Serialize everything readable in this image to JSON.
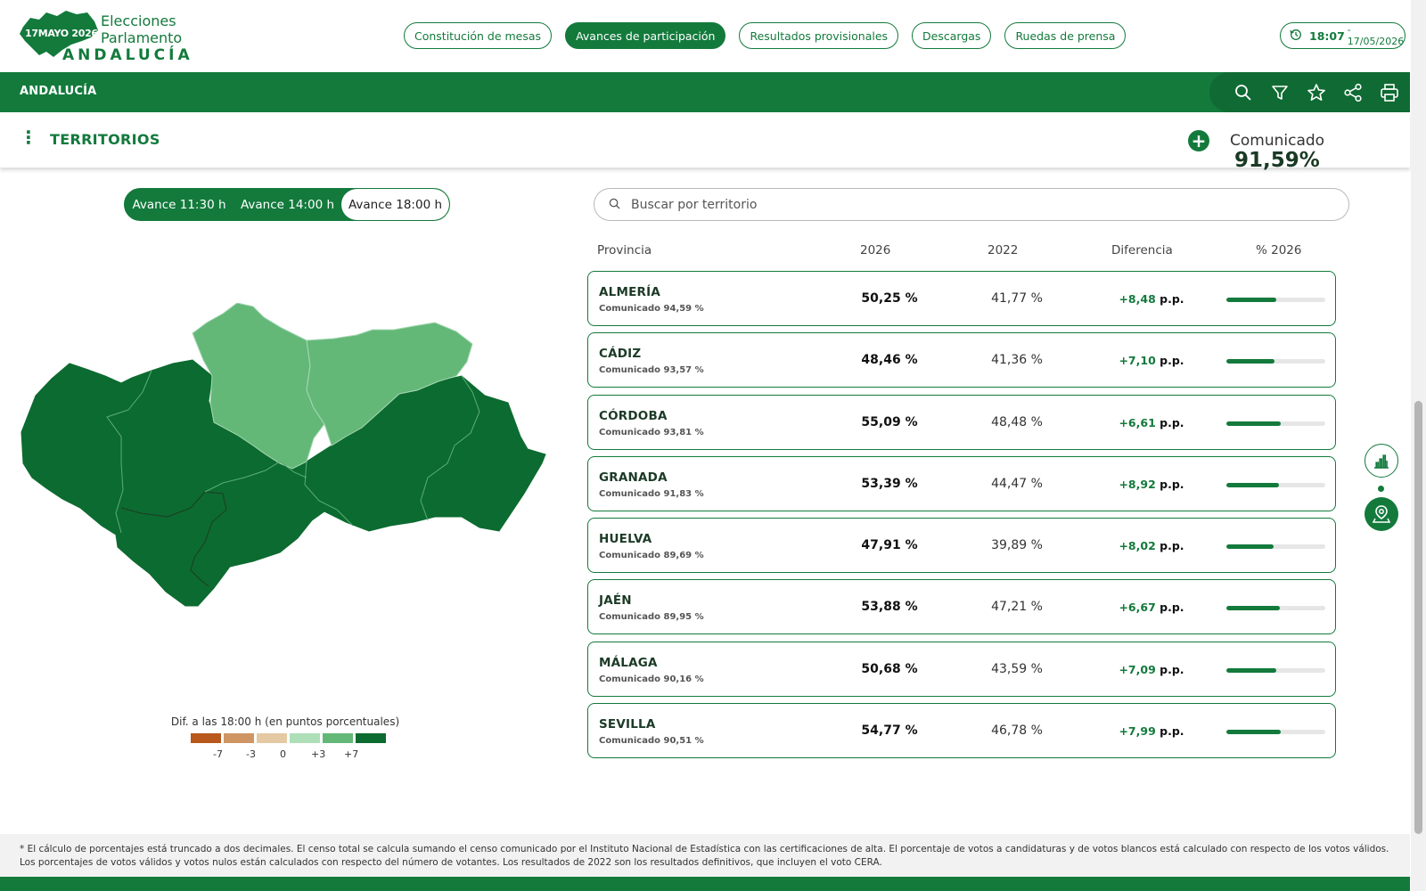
{
  "brand": {
    "date": "17MAYO 2026",
    "line1": "Elecciones",
    "line2": "Parlamento",
    "line3": "ANDALUCÍA"
  },
  "nav": [
    {
      "label": "Constitución de mesas",
      "active": false
    },
    {
      "label": "Avances de participación",
      "active": true
    },
    {
      "label": "Resultados provisionales",
      "active": false
    },
    {
      "label": "Descargas",
      "active": false
    },
    {
      "label": "Ruedas de prensa",
      "active": false
    }
  ],
  "clock": {
    "time": "18:07",
    "date": "- 17/05/2026"
  },
  "region_bar": {
    "title": "ANDALUCÍA",
    "icons": [
      "search-icon",
      "filter-icon",
      "star-icon",
      "share-icon",
      "print-icon"
    ]
  },
  "territories": {
    "title": "TERRITORIOS",
    "comunicado_label": "Comunicado",
    "comunicado_value": "91,59%"
  },
  "tabs": [
    "Avance 11:30 h",
    "Avance 14:00 h",
    "Avance 18:00 h"
  ],
  "selected_tab": "Avance 18:00 h",
  "search": {
    "placeholder": "Buscar por territorio"
  },
  "table": {
    "headers": {
      "provincia": "Provincia",
      "y2026": "2026",
      "y2022": "2022",
      "dif": "Diferencia",
      "pct": "% 2026"
    },
    "unit": "p.p.",
    "rows": [
      {
        "name": "ALMERÍA",
        "sub": "Comunicado 94,59 %",
        "v2026": "50,25 %",
        "v2022": "41,77 %",
        "dif": "+8,48",
        "pct": 50.25
      },
      {
        "name": "CÁDIZ",
        "sub": "Comunicado 93,57 %",
        "v2026": "48,46 %",
        "v2022": "41,36 %",
        "dif": "+7,10",
        "pct": 48.46
      },
      {
        "name": "CÓRDOBA",
        "sub": "Comunicado 93,81 %",
        "v2026": "55,09 %",
        "v2022": "48,48 %",
        "dif": "+6,61",
        "pct": 55.09
      },
      {
        "name": "GRANADA",
        "sub": "Comunicado 91,83 %",
        "v2026": "53,39 %",
        "v2022": "44,47 %",
        "dif": "+8,92",
        "pct": 53.39
      },
      {
        "name": "HUELVA",
        "sub": "Comunicado 89,69 %",
        "v2026": "47,91 %",
        "v2022": "39,89 %",
        "dif": "+8,02",
        "pct": 47.91
      },
      {
        "name": "JAÉN",
        "sub": "Comunicado 89,95 %",
        "v2026": "53,88 %",
        "v2022": "47,21 %",
        "dif": "+6,67",
        "pct": 53.88
      },
      {
        "name": "MÁLAGA",
        "sub": "Comunicado 90,16 %",
        "v2026": "50,68 %",
        "v2022": "43,59 %",
        "dif": "+7,09",
        "pct": 50.68
      },
      {
        "name": "SEVILLA",
        "sub": "Comunicado 90,51 %",
        "v2026": "54,77 %",
        "v2022": "46,78 %",
        "dif": "+7,99",
        "pct": 54.77
      }
    ]
  },
  "map": {
    "colors": {
      "dark": "#0c6b30",
      "light": "#63b878",
      "lighter": "#7cc58f"
    },
    "shading": {
      "CÓRDOBA": "light",
      "JAÉN": "light",
      "ALMERÍA": "dark",
      "CÁDIZ": "dark",
      "GRANADA": "dark",
      "HUELVA": "dark",
      "MÁLAGA": "dark",
      "SEVILLA": "dark"
    }
  },
  "legend": {
    "title": "Dif. a las 18:00 h (en puntos porcentuales)",
    "colors": [
      "#b8581c",
      "#cf9563",
      "#e4c9a3",
      "#aedfb8",
      "#63b878",
      "#0c6b30"
    ],
    "labels": [
      "-7",
      "-3",
      "0",
      "+3",
      "+7"
    ]
  },
  "side_buttons": [
    "bar-chart-icon",
    "map-pin-icon"
  ],
  "footnote": "* El cálculo de porcentajes está truncado a dos decimales. El censo total se calcula sumando el censo comunicado por el Instituto Nacional de Estadística con las certificaciones de alta. El porcentaje de votos a candidaturas y de votos blancos está calculado con respecto de los votos válidos. Los porcentajes de votos válidos y votos nulos están calculados con respecto del número de votantes. Los resultados de 2022 son los resultados definitivos, que incluyen el voto CERA.",
  "colors": {
    "brand": "#137a3c",
    "brand_dark": "#0f6b33"
  }
}
